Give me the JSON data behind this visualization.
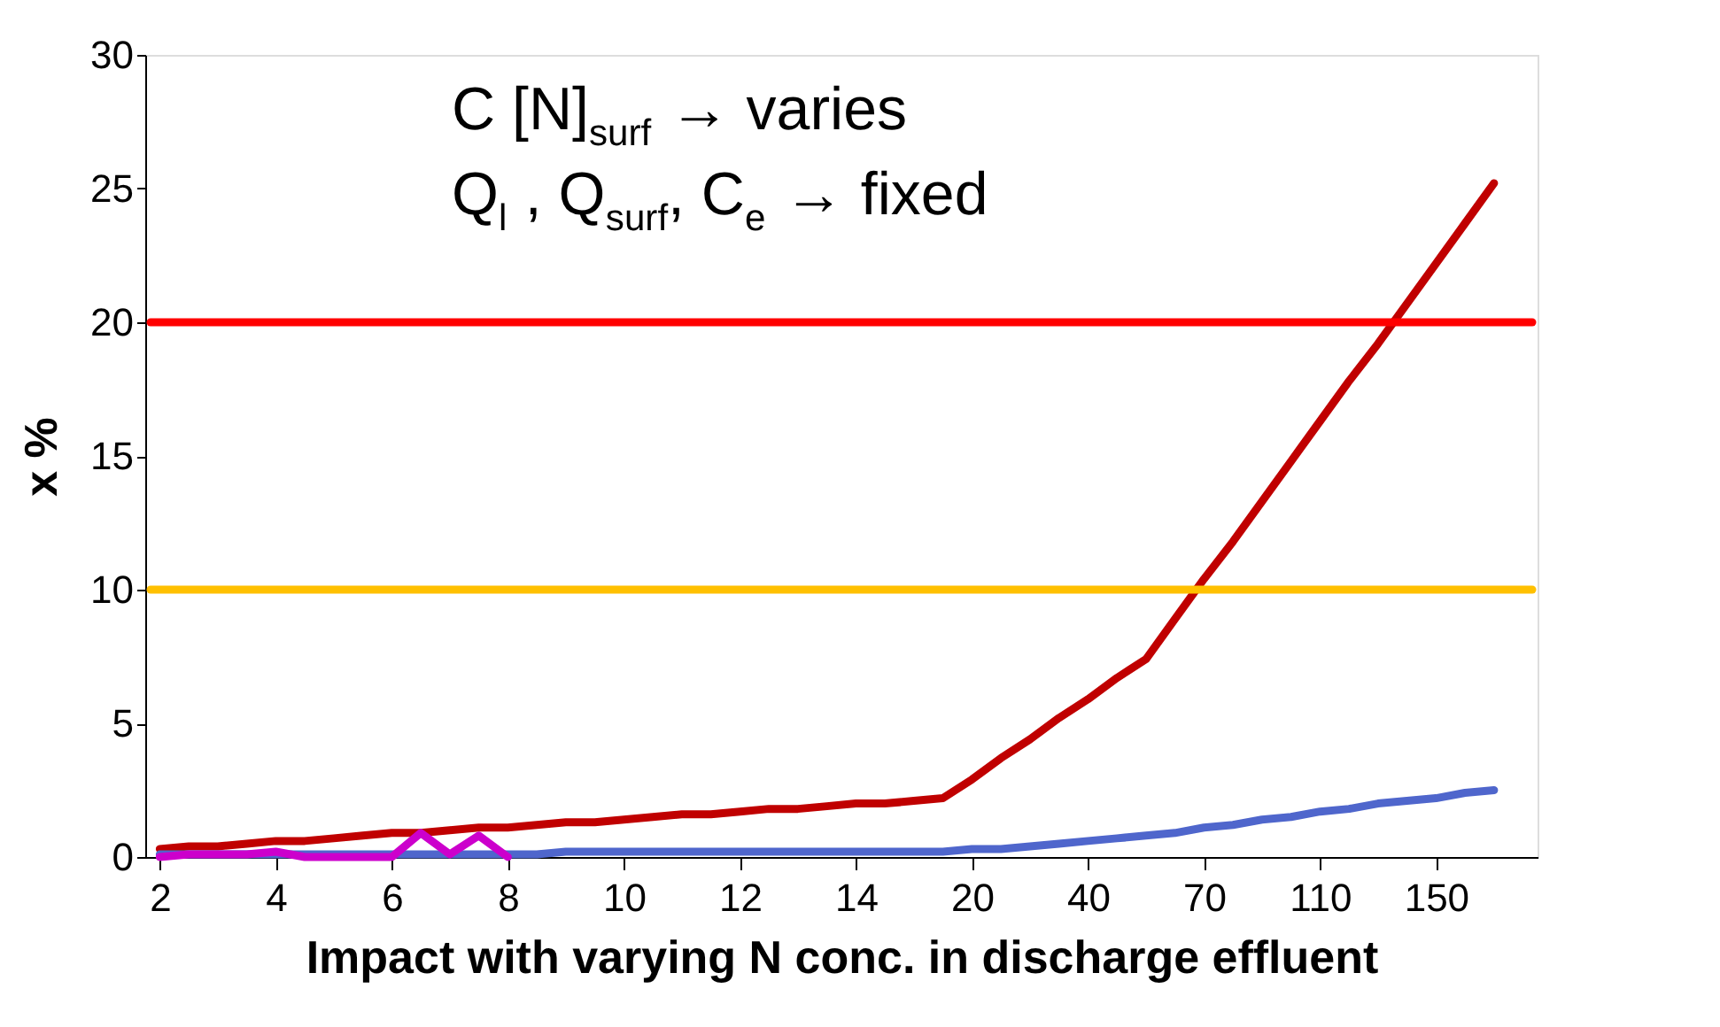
{
  "chart_data": {
    "type": "line",
    "xlabel": "Impact with varying N conc. in discharge effluent",
    "ylabel": "x %",
    "categories": [
      "2",
      null,
      null,
      null,
      "4",
      null,
      null,
      null,
      "6",
      null,
      null,
      null,
      "8",
      null,
      null,
      null,
      "10",
      null,
      null,
      null,
      "12",
      null,
      null,
      null,
      "14",
      null,
      null,
      null,
      "20",
      null,
      null,
      null,
      "40",
      null,
      null,
      null,
      "70",
      null,
      null,
      null,
      "110",
      null,
      null,
      null,
      "150",
      null,
      null,
      null
    ],
    "series": [
      {
        "color": "#c00000",
        "values": [
          0.3,
          0.4,
          0.4,
          0.5,
          0.6,
          0.6,
          0.7,
          0.8,
          0.9,
          0.9,
          1.0,
          1.1,
          1.1,
          1.2,
          1.3,
          1.3,
          1.4,
          1.5,
          1.6,
          1.6,
          1.7,
          1.8,
          1.8,
          1.9,
          2.0,
          2.0,
          2.1,
          2.2,
          2.9,
          3.7,
          4.4,
          5.2,
          5.9,
          6.7,
          7.4,
          8.9,
          10.4,
          11.8,
          13.3,
          14.8,
          16.3,
          17.8,
          19.2,
          20.7,
          22.2,
          23.7,
          25.2,
          null
        ]
      },
      {
        "color": "#4f66cc",
        "values": [
          0.1,
          0.1,
          0.1,
          0.1,
          0.1,
          0.1,
          0.1,
          0.1,
          0.1,
          0.1,
          0.1,
          0.1,
          0.1,
          0.1,
          0.2,
          0.2,
          0.2,
          0.2,
          0.2,
          0.2,
          0.2,
          0.2,
          0.2,
          0.2,
          0.2,
          0.2,
          0.2,
          0.2,
          0.3,
          0.3,
          0.4,
          0.5,
          0.6,
          0.7,
          0.8,
          0.9,
          1.1,
          1.2,
          1.4,
          1.5,
          1.7,
          1.8,
          2.0,
          2.1,
          2.2,
          2.4,
          2.5,
          null
        ]
      },
      {
        "color": "#cc00cc",
        "values": [
          0.0,
          0.1,
          0.1,
          0.1,
          0.2,
          0.0,
          0.0,
          0.0,
          0.0,
          0.9,
          0.1,
          0.8,
          0.0,
          null,
          null,
          null,
          null,
          null,
          null,
          null,
          null,
          null,
          null,
          null,
          null,
          null,
          null,
          null,
          null,
          null,
          null,
          null,
          null,
          null,
          null,
          null,
          null,
          null,
          null,
          null,
          null,
          null,
          null,
          null,
          null,
          null,
          null,
          null
        ]
      }
    ],
    "ref_lines": [
      {
        "axis": "y",
        "value": 20,
        "color": "#ff0000"
      },
      {
        "axis": "y",
        "value": 10,
        "color": "#ffc000"
      }
    ],
    "ylim": [
      0,
      30
    ],
    "yticks": [
      0,
      5,
      10,
      15,
      20,
      25,
      30
    ],
    "grid": false,
    "line_style": "solid",
    "marker": "none",
    "annotations": [
      "C [N]$_{surf}$ → varies",
      "Q$_{l}$ , Q$_{surf}$, C$_{e}$ → fixed"
    ]
  }
}
